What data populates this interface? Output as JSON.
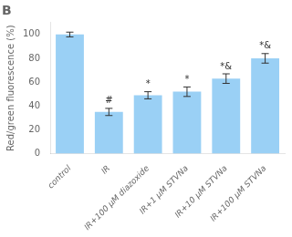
{
  "chart_data": {
    "type": "bar",
    "title": "B",
    "categories": [
      "control",
      "IR",
      "IR+100 μM diazoxide",
      "IR+1 μM STVNa",
      "IR+10 μM STVNa",
      "IR+100 μM STVNa"
    ],
    "values": [
      100,
      35,
      49,
      52,
      63,
      80
    ],
    "errors": [
      2,
      3,
      3,
      4,
      4,
      4
    ],
    "annotations": [
      null,
      "#",
      "*",
      "*",
      "*&",
      "*&"
    ],
    "y_label": "Red/green fluorescence (%)",
    "ylim": [
      0,
      110
    ],
    "yticks": [
      0,
      20,
      40,
      60,
      80,
      100
    ],
    "grid": false
  }
}
